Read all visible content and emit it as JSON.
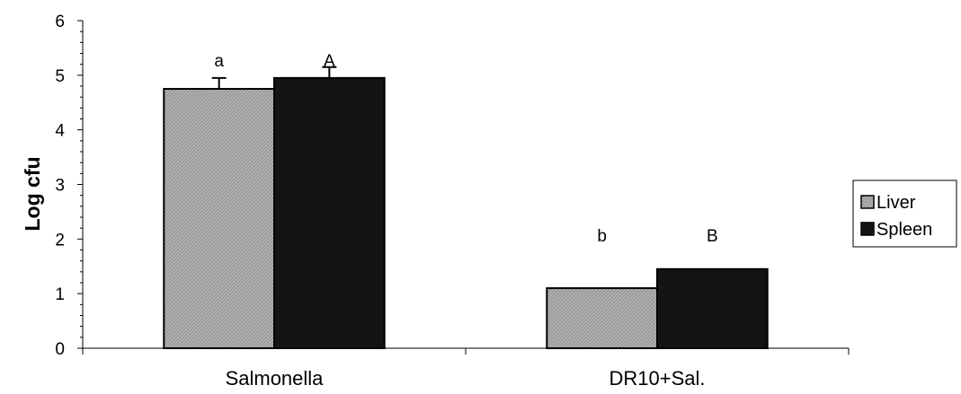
{
  "chart_data": {
    "type": "bar",
    "categories": [
      "Salmonella",
      "DR10+Sal."
    ],
    "series": [
      {
        "name": "Liver",
        "values": [
          4.75,
          1.1
        ],
        "errors": [
          0.2,
          null
        ],
        "color": "#a8a8a8"
      },
      {
        "name": "Spleen",
        "values": [
          4.95,
          1.45
        ],
        "errors": [
          0.2,
          null
        ],
        "color": "#141414"
      }
    ],
    "annotations": [
      {
        "category": 0,
        "series": 0,
        "text": "a"
      },
      {
        "category": 0,
        "series": 1,
        "text": "A"
      },
      {
        "category": 1,
        "series": 0,
        "text": "b"
      },
      {
        "category": 1,
        "series": 1,
        "text": "B"
      }
    ],
    "title": "",
    "xlabel": "",
    "ylabel": "Log cfu",
    "ylim": [
      0,
      6
    ],
    "yticks": [
      "0",
      "1",
      "2",
      "3",
      "4",
      "5",
      "6"
    ],
    "grid": false,
    "legend_position": "right"
  }
}
